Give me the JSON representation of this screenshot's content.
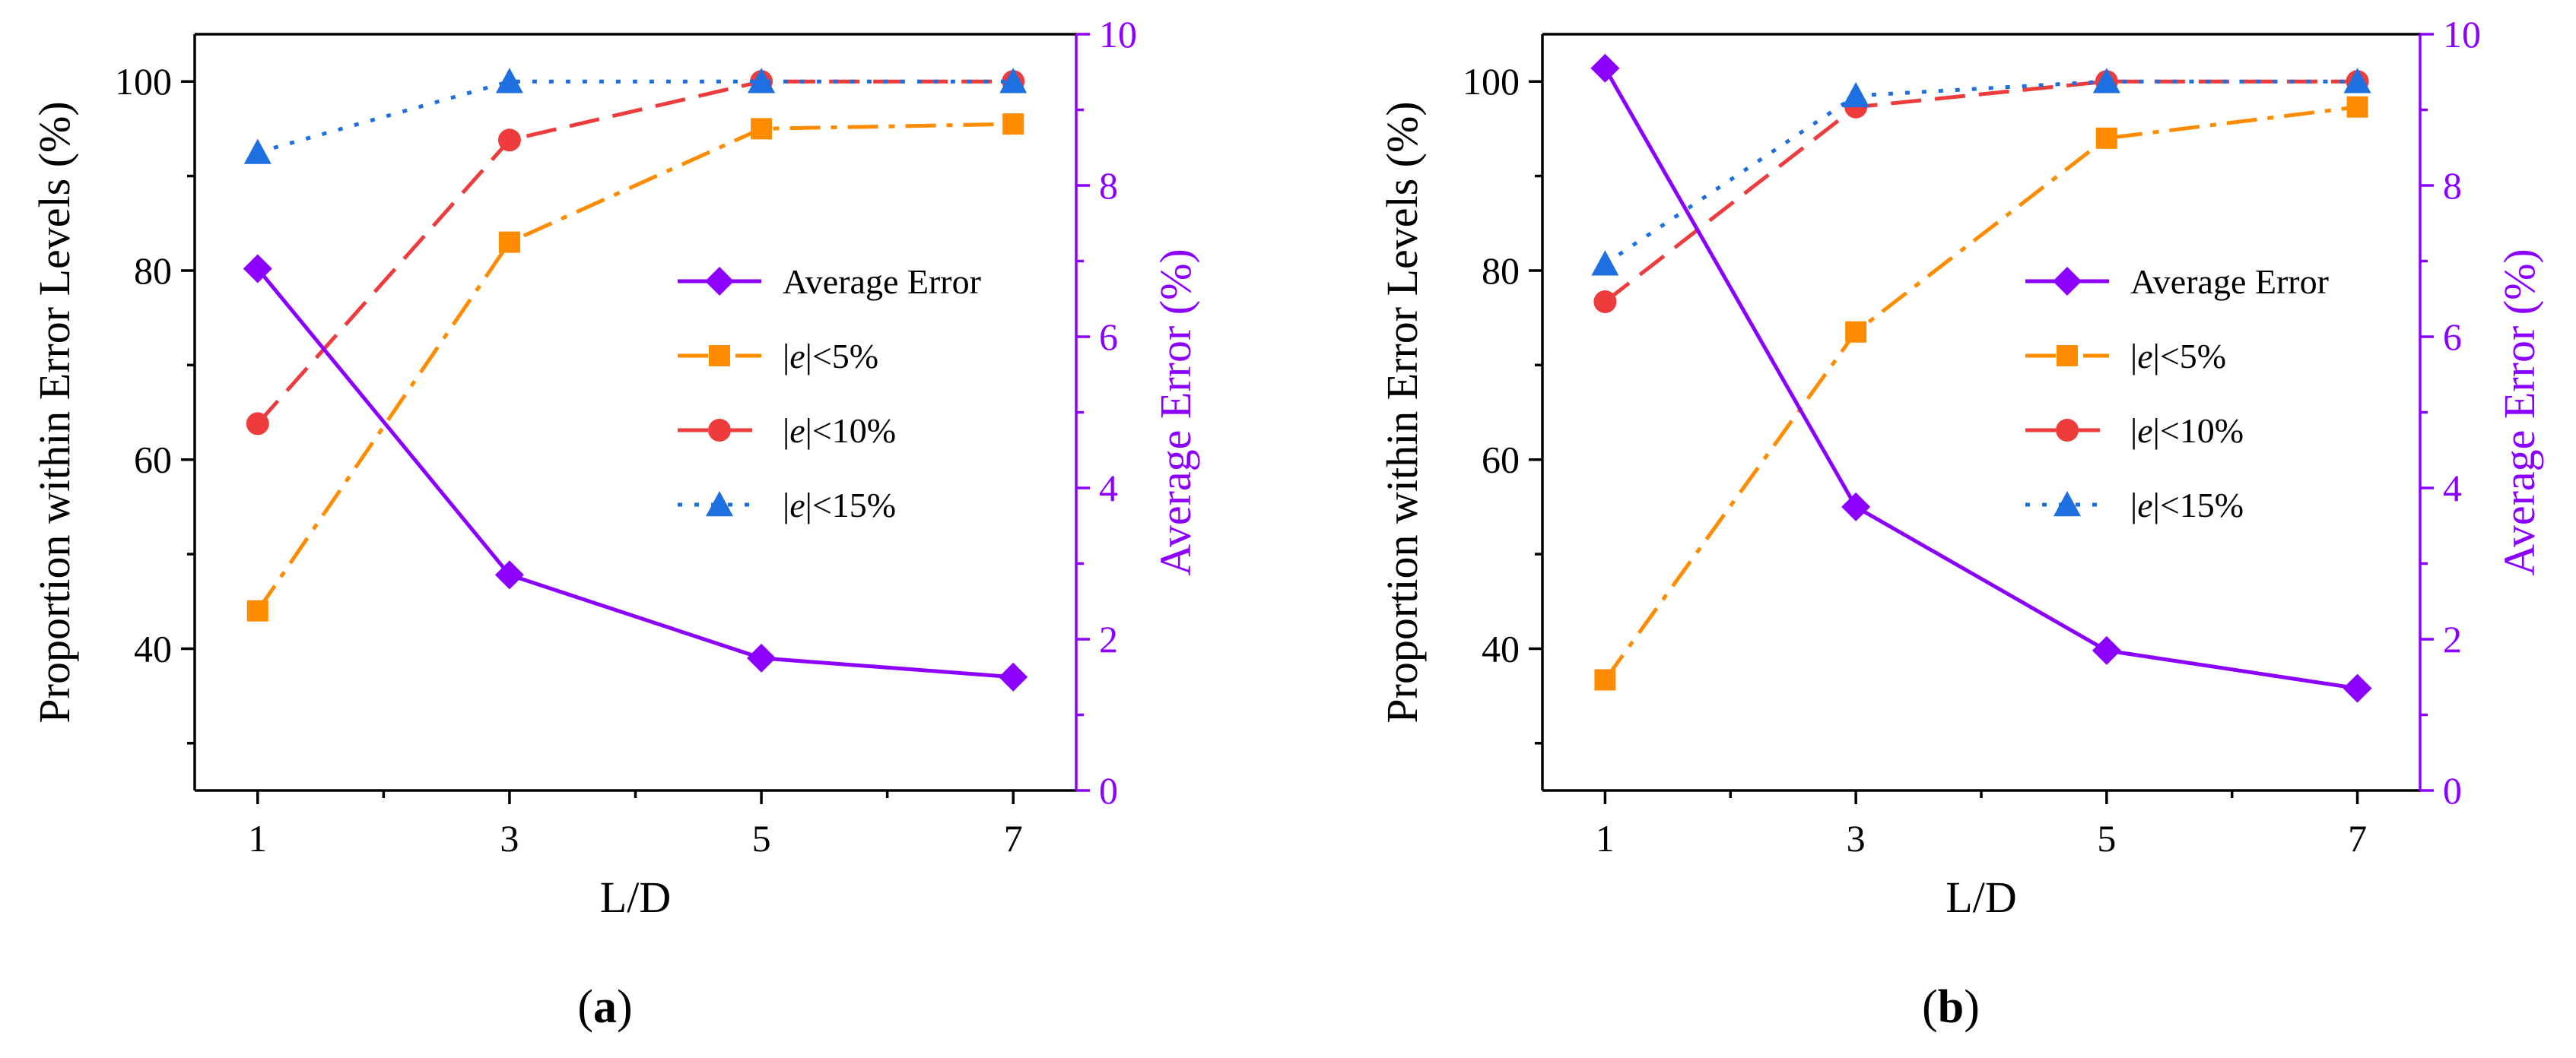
{
  "chart_data": [
    {
      "type": "line",
      "panel_label": "(a)",
      "panel_letter": "a",
      "x": [
        1,
        3,
        5,
        7
      ],
      "xlabel": "L/D",
      "xticks": [
        "1",
        "3",
        "5",
        "7"
      ],
      "xlim": [
        0.5,
        7.5
      ],
      "ylabel_left": "Proportion within Error Levels (%)",
      "ylim_left": [
        25,
        105
      ],
      "yticks_left": [
        "40",
        "60",
        "80",
        "100"
      ],
      "ylabel_right": "Average Error (%)",
      "ylim_right": [
        0,
        10
      ],
      "yticks_right": [
        "0",
        "2",
        "4",
        "6",
        "8",
        "10"
      ],
      "legend_position": "center-right",
      "series": [
        {
          "name": "Average Error",
          "axis": "right",
          "values": [
            6.9,
            2.85,
            1.75,
            1.5
          ],
          "color": "#8B00FF",
          "marker": "diamond",
          "dash": "solid"
        },
        {
          "name": "|e|<5%",
          "name_parts": [
            "|",
            "e",
            "|<5%"
          ],
          "axis": "left",
          "values": [
            44,
            83,
            95,
            95.5
          ],
          "color": "#FF8C00",
          "marker": "square",
          "dash": "dashdot"
        },
        {
          "name": "|e|<10%",
          "name_parts": [
            "|",
            "e",
            "|<10%"
          ],
          "axis": "left",
          "values": [
            63.8,
            93.8,
            100,
            100
          ],
          "color": "#EE3B3B",
          "marker": "circle",
          "dash": "dash"
        },
        {
          "name": "|e|<15%",
          "name_parts": [
            "|",
            "e",
            "|<15%"
          ],
          "axis": "left",
          "values": [
            92.5,
            100,
            100,
            100
          ],
          "color": "#1E6FE0",
          "marker": "triangle",
          "dash": "dot"
        }
      ]
    },
    {
      "type": "line",
      "panel_label": "(b)",
      "panel_letter": "b",
      "x": [
        1,
        3,
        5,
        7
      ],
      "xlabel": "L/D",
      "xticks": [
        "1",
        "3",
        "5",
        "7"
      ],
      "xlim": [
        0.5,
        7.5
      ],
      "ylabel_left": "Proportion within Error Levels (%)",
      "ylim_left": [
        25,
        105
      ],
      "yticks_left": [
        "40",
        "60",
        "80",
        "100"
      ],
      "ylabel_right": "Average Error (%)",
      "ylim_right": [
        0,
        10
      ],
      "yticks_right": [
        "0",
        "2",
        "4",
        "6",
        "8",
        "10"
      ],
      "legend_position": "center-right",
      "series": [
        {
          "name": "Average Error",
          "axis": "right",
          "values": [
            9.55,
            3.75,
            1.85,
            1.35
          ],
          "color": "#8B00FF",
          "marker": "diamond",
          "dash": "solid"
        },
        {
          "name": "|e|<5%",
          "name_parts": [
            "|",
            "e",
            "|<5%"
          ],
          "axis": "left",
          "values": [
            36.7,
            73.5,
            94,
            97.3
          ],
          "color": "#FF8C00",
          "marker": "square",
          "dash": "dashdot"
        },
        {
          "name": "|e|<10%",
          "name_parts": [
            "|",
            "e",
            "|<10%"
          ],
          "axis": "left",
          "values": [
            76.7,
            97.3,
            100,
            100
          ],
          "color": "#EE3B3B",
          "marker": "circle",
          "dash": "dash"
        },
        {
          "name": "|e|<15%",
          "name_parts": [
            "|",
            "e",
            "|<15%"
          ],
          "axis": "left",
          "values": [
            80.7,
            98.5,
            100,
            100
          ],
          "color": "#1E6FE0",
          "marker": "triangle",
          "dash": "dot"
        }
      ]
    }
  ]
}
